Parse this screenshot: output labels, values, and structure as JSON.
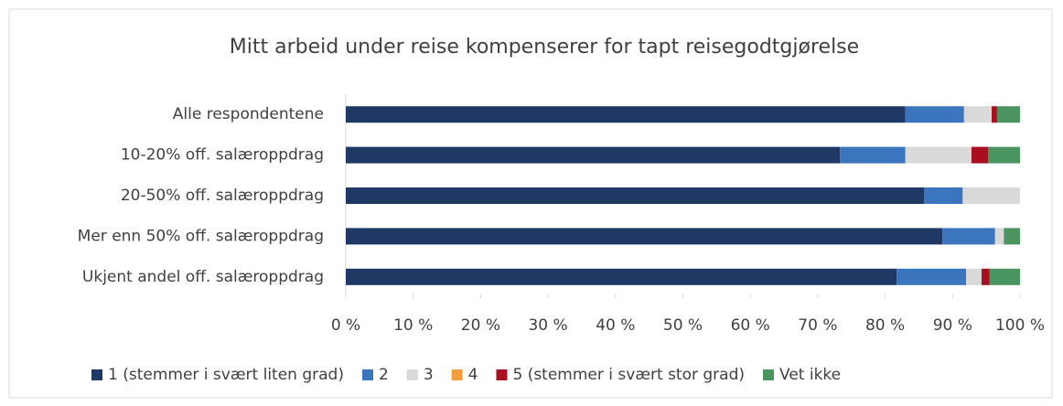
{
  "chart_data": {
    "type": "stacked-bar-horizontal",
    "title": "Mitt arbeid under reise kompenserer for tapt reisegodtgjørelse",
    "categories": [
      "Alle respondentene",
      "10-20% off. salæroppdrag",
      "20-50% off. salæroppdrag",
      "Mer enn 50% off. salæroppdrag",
      "Ukjent andel off. salæroppdrag"
    ],
    "series": [
      {
        "name": "1 (stemmer i svært liten grad)",
        "color": "#1f3864",
        "values": [
          83,
          73.3,
          85.8,
          88.5,
          81.7
        ]
      },
      {
        "name": "2",
        "color": "#3a75be",
        "values": [
          8.7,
          9.7,
          5.7,
          7.8,
          10.3
        ]
      },
      {
        "name": "3",
        "color": "#d9d9d9",
        "values": [
          4.1,
          9.8,
          8.5,
          1.3,
          2.3
        ]
      },
      {
        "name": "4",
        "color": "#f59c3c",
        "values": [
          0,
          0,
          0,
          0,
          0
        ]
      },
      {
        "name": "5 (stemmer i svært stor grad)",
        "color": "#a9101f",
        "values": [
          0.8,
          2.5,
          0,
          0,
          1.2
        ]
      },
      {
        "name": "Vet ikke",
        "color": "#4a9460",
        "values": [
          3.4,
          4.7,
          0,
          2.4,
          4.5
        ]
      }
    ],
    "xlim": [
      0,
      100
    ],
    "xticks": [
      {
        "value": 0,
        "label": "0 %"
      },
      {
        "value": 10,
        "label": "10 %"
      },
      {
        "value": 20,
        "label": "20 %"
      },
      {
        "value": 30,
        "label": "30 %"
      },
      {
        "value": 40,
        "label": "40 %"
      },
      {
        "value": 50,
        "label": "50 %"
      },
      {
        "value": 60,
        "label": "60 %"
      },
      {
        "value": 70,
        "label": "70 %"
      },
      {
        "value": 80,
        "label": "80 %"
      },
      {
        "value": 90,
        "label": "90 %"
      },
      {
        "value": 100,
        "label": "100 %"
      }
    ],
    "grid": false,
    "legend": "bottom"
  }
}
